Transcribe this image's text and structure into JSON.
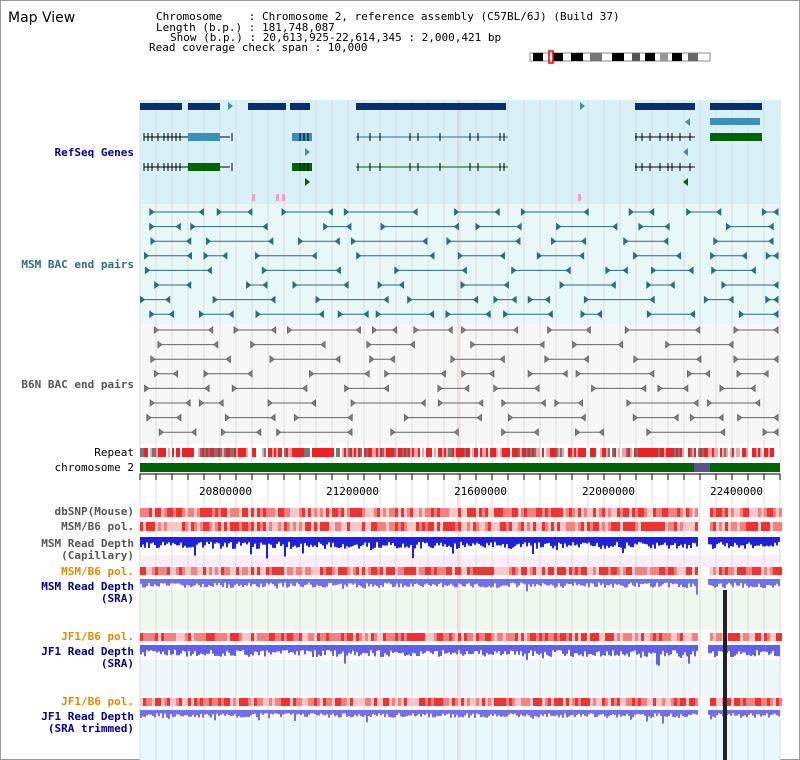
{
  "title": "Map View",
  "info": {
    "chromosome": "Chromosome    : Chromosome 2, reference assembly (C57BL/6J) (Build 37)",
    "length": "Length (b.p.) : 181,748,087",
    "show": "Show (b.p.) : 20,613,925-22,614,345 : 2,000,421 bp",
    "coverage": "Read coverage check span : 10,000"
  },
  "tracks": {
    "refseq": "RefSeq Genes",
    "msm_bac": "MSM BAC end pairs",
    "b6n_bac": "B6N BAC end pairs",
    "repeat": "Repeat",
    "chromosome": "chromosome 2",
    "dbsnp": "dbSNP(Mouse)",
    "msm_b6_pol": "MSM/B6 pol.",
    "msm_depth_cap_1": "MSM Read Depth",
    "msm_depth_cap_2": "(Capillary)",
    "msm_b6_pol2": "MSM/B6 pol.",
    "msm_depth_sra_1": "MSM Read Depth",
    "msm_depth_sra_2": "(SRA)",
    "jf1_b6_pol": "JF1/B6 pol.",
    "jf1_depth_sra_1": "JF1 Read Depth",
    "jf1_depth_sra_2": "(SRA)",
    "jf1_b6_pol2": "JF1/B6 pol.",
    "jf1_depth_trim_1": "JF1 Read Depth",
    "jf1_depth_trim_2": "(SRA trimmed)"
  },
  "axis_ticks": [
    "20800000",
    "21200000",
    "21600000",
    "22000000",
    "22400000"
  ],
  "colors": {
    "refseq_bg": "#d8f0f8",
    "msm_bg": "#e6f6f6",
    "b6n_bg": "#f4f4f4",
    "gene_dark": "#0a2f6e",
    "gene_mid": "#3c8fb8",
    "gene_green": "#006400",
    "chrom_green": "#006400",
    "depth_blue": "#2020e0",
    "depth_light": "#7070f0",
    "pol_red": "#ee3333"
  }
}
